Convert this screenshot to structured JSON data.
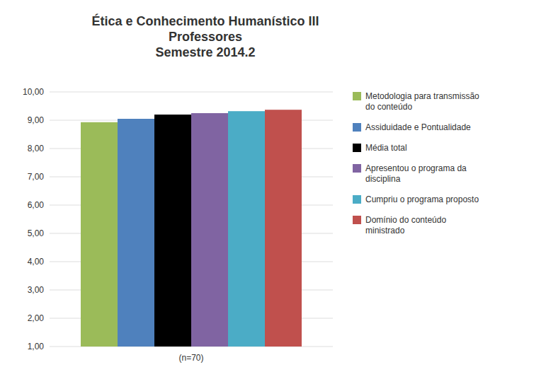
{
  "chart_data": {
    "type": "bar",
    "title": "Ética e Conhecimento Humanístico III\nProfessores\nSemestre 2014.2",
    "categories": [
      "(n=70)"
    ],
    "series": [
      {
        "name": "Metodologia para transmissão\ndo conteúdo",
        "color": "#9BBB59",
        "values": [
          8.93
        ]
      },
      {
        "name": "Assiduidade e Pontualidade",
        "color": "#4F81BD",
        "values": [
          9.05
        ]
      },
      {
        "name": "Média total",
        "color": "#000000",
        "values": [
          9.2
        ]
      },
      {
        "name": "Apresentou o programa da\ndisciplina",
        "color": "#8064A2",
        "values": [
          9.25
        ]
      },
      {
        "name": "Cumpriu o programa proposto",
        "color": "#4BACC6",
        "values": [
          9.32
        ]
      },
      {
        "name": "Domínio do conteúdo\nministrado",
        "color": "#C0504D",
        "values": [
          9.37
        ]
      }
    ],
    "ylim": [
      1.0,
      10.0
    ],
    "yticks": [
      {
        "value": 1.0,
        "label": "1,00"
      },
      {
        "value": 2.0,
        "label": "2,00"
      },
      {
        "value": 3.0,
        "label": "3,00"
      },
      {
        "value": 4.0,
        "label": "4,00"
      },
      {
        "value": 5.0,
        "label": "5,00"
      },
      {
        "value": 6.0,
        "label": "6,00"
      },
      {
        "value": 7.0,
        "label": "7,00"
      },
      {
        "value": 8.0,
        "label": "8,00"
      },
      {
        "value": 9.0,
        "label": "9,00"
      },
      {
        "value": 10.0,
        "label": "10,00"
      }
    ],
    "grid": true,
    "legend": "right"
  }
}
